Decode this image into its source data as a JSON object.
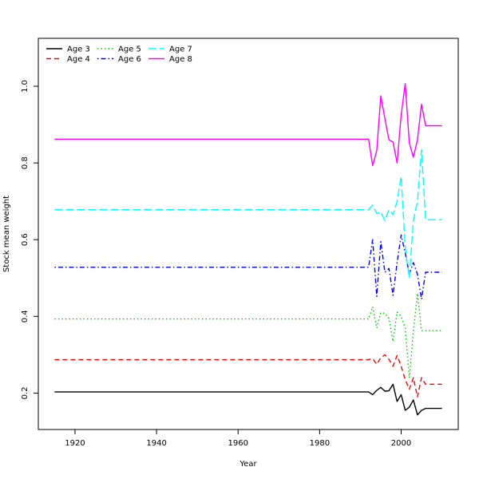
{
  "chart_data": {
    "type": "line",
    "title": "",
    "xlabel": "Year",
    "ylabel": "Stock mean weight",
    "xlim": [
      1911,
      2014
    ],
    "ylim": [
      0.105,
      1.125
    ],
    "x_ticks": [
      1920,
      1940,
      1960,
      1980,
      2000
    ],
    "y_ticks": [
      0.2,
      0.4,
      0.6,
      0.8,
      1.0
    ],
    "x_tick_labels": [
      "1920",
      "1940",
      "1960",
      "1980",
      "2000"
    ],
    "y_tick_labels": [
      "0.2",
      "0.4",
      "0.6",
      "0.8",
      "1.0"
    ],
    "grid": false,
    "legend_position": "top-left",
    "series": [
      {
        "name": "Age 3",
        "color": "#000000",
        "dash": "solid",
        "x": [
          1915,
          1992,
          1993,
          1994,
          1995,
          1996,
          1997,
          1998,
          1999,
          2000,
          2001,
          2002,
          2003,
          2004,
          2005,
          2006,
          2010
        ],
        "y": [
          0.203,
          0.203,
          0.196,
          0.207,
          0.215,
          0.205,
          0.206,
          0.223,
          0.178,
          0.196,
          0.155,
          0.163,
          0.182,
          0.143,
          0.155,
          0.16,
          0.16
        ]
      },
      {
        "name": "Age 4",
        "color": "#ff0000",
        "dash": "dashed",
        "x": [
          1915,
          1992,
          1993,
          1994,
          1995,
          1996,
          1997,
          1998,
          1999,
          2000,
          2001,
          2002,
          2003,
          2004,
          2005,
          2006,
          2010
        ],
        "y": [
          0.287,
          0.287,
          0.29,
          0.275,
          0.292,
          0.3,
          0.288,
          0.27,
          0.298,
          0.27,
          0.235,
          0.21,
          0.24,
          0.19,
          0.24,
          0.223,
          0.223
        ]
      },
      {
        "name": "Age 5",
        "color": "#00cd00",
        "dash": "dotted",
        "x": [
          1915,
          1992,
          1993,
          1994,
          1995,
          1996,
          1997,
          1998,
          1999,
          2000,
          2001,
          2002,
          2003,
          2004,
          2005,
          2006,
          2010
        ],
        "y": [
          0.393,
          0.393,
          0.425,
          0.37,
          0.41,
          0.408,
          0.395,
          0.335,
          0.411,
          0.4,
          0.37,
          0.24,
          0.36,
          0.46,
          0.363,
          0.363,
          0.363
        ]
      },
      {
        "name": "Age 6",
        "color": "#0000ff",
        "dash": "dotdash",
        "x": [
          1915,
          1992,
          1993,
          1994,
          1995,
          1996,
          1997,
          1998,
          1999,
          2000,
          2001,
          2002,
          2003,
          2004,
          2005,
          2006,
          2010
        ],
        "y": [
          0.528,
          0.528,
          0.6,
          0.452,
          0.595,
          0.515,
          0.525,
          0.455,
          0.54,
          0.612,
          0.565,
          0.51,
          0.54,
          0.51,
          0.445,
          0.515,
          0.515
        ]
      },
      {
        "name": "Age 7",
        "color": "#00ffff",
        "dash": "longdash",
        "x": [
          1915,
          1992,
          1993,
          1994,
          1995,
          1996,
          1997,
          1998,
          1999,
          2000,
          2001,
          2002,
          2003,
          2004,
          2005,
          2006,
          2010
        ],
        "y": [
          0.678,
          0.678,
          0.69,
          0.668,
          0.672,
          0.65,
          0.678,
          0.665,
          0.7,
          0.765,
          0.58,
          0.5,
          0.65,
          0.7,
          0.835,
          0.652,
          0.652
        ]
      },
      {
        "name": "Age 8",
        "color": "#ff00ff",
        "dash": "solid",
        "x": [
          1915,
          1992,
          1993,
          1994,
          1995,
          1996,
          1997,
          1998,
          1999,
          2000,
          2001,
          2002,
          2003,
          2004,
          2005,
          2006,
          2010
        ],
        "y": [
          0.862,
          0.862,
          0.793,
          0.832,
          0.975,
          0.916,
          0.86,
          0.855,
          0.8,
          0.925,
          1.007,
          0.852,
          0.815,
          0.86,
          0.953,
          0.897,
          0.897
        ]
      }
    ]
  }
}
